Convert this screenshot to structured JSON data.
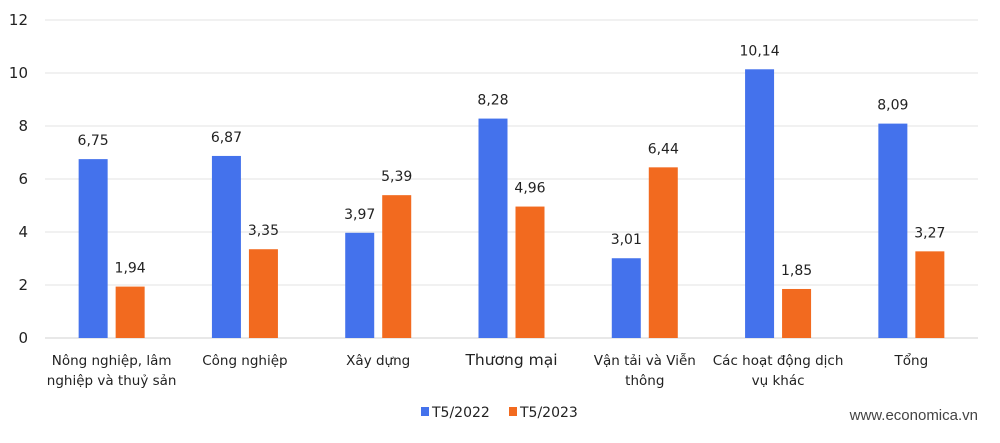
{
  "chart_data": {
    "type": "bar",
    "categories": [
      [
        "Nông nghiệp, lâm",
        "nghiệp và thuỷ sản"
      ],
      [
        "Công nghiệp"
      ],
      [
        "Xây dựng"
      ],
      [
        "Thương mại"
      ],
      [
        "Vận tải và Viễn",
        "thông"
      ],
      [
        "Các hoạt động dịch",
        "vụ khác"
      ],
      [
        "Tổng"
      ]
    ],
    "series": [
      {
        "name": "T5/2022",
        "color": "#4472EC",
        "values": [
          6.75,
          6.87,
          3.97,
          8.28,
          3.01,
          10.14,
          8.09
        ],
        "labels": [
          "6,75",
          "6,87",
          "3,97",
          "8,28",
          "3,01",
          "10,14",
          "8,09"
        ]
      },
      {
        "name": "T5/2023",
        "color": "#F26A1F",
        "values": [
          1.94,
          3.35,
          5.39,
          4.96,
          6.44,
          1.85,
          3.27
        ],
        "labels": [
          "1,94",
          "3,35",
          "5,39",
          "4,96",
          "6,44",
          "1,85",
          "3,27"
        ]
      }
    ],
    "yticks": [
      "0",
      "2",
      "4",
      "6",
      "8",
      "10",
      "12"
    ],
    "ylim": [
      0,
      12
    ],
    "grid": true,
    "legend": "bottom-center",
    "xlabel": "",
    "ylabel": "",
    "title": ""
  },
  "watermark": "www.economica.vn"
}
